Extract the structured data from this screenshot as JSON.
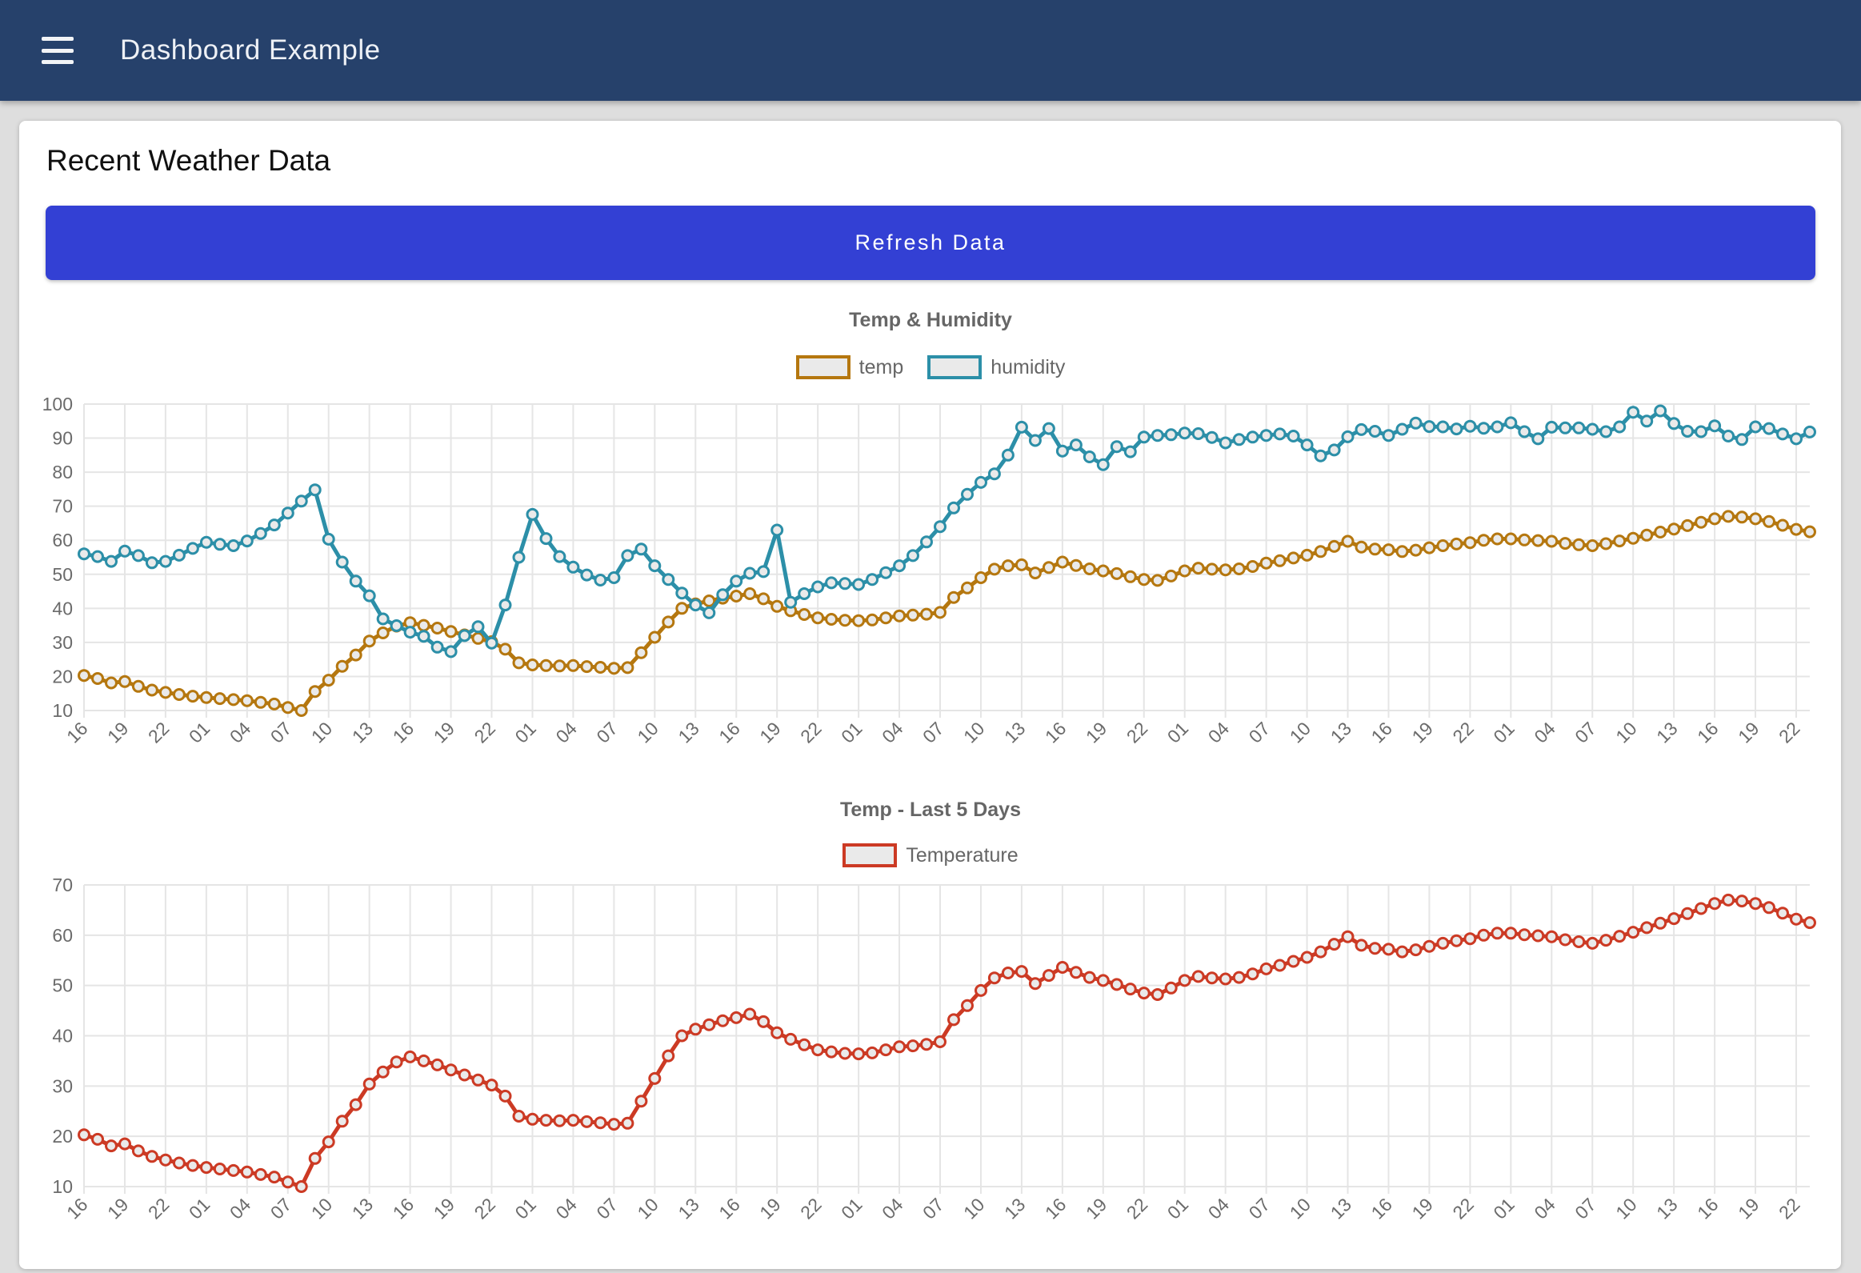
{
  "header": {
    "title": "Dashboard Example"
  },
  "page": {
    "heading": "Recent Weather Data",
    "refresh_button": "Refresh Data"
  },
  "colors": {
    "header_bg": "#26416b",
    "button_bg": "#3340d4",
    "page_bg": "#dedede",
    "card_bg": "#ffffff",
    "grid": "#e5e5e5",
    "tick_text": "#6b6b6b",
    "title_text": "#666666",
    "marker_fill": "#eaeaea",
    "temp_line": "#b5770f",
    "humidity_line": "#2c8fa8",
    "temperature_line": "#cc3a24"
  },
  "chart_data": [
    {
      "type": "line",
      "title": "Temp & Humidity",
      "legend_position": "top",
      "grid": true,
      "ylim": [
        10,
        100
      ],
      "yticks": [
        100,
        90,
        80,
        70,
        60,
        50,
        40,
        30,
        20,
        10
      ],
      "points_per_label": 3,
      "x_tick_labels": [
        "16",
        "19",
        "22",
        "01",
        "04",
        "07",
        "10",
        "13",
        "16",
        "19",
        "22",
        "01",
        "04",
        "07",
        "10",
        "13",
        "16",
        "19",
        "22",
        "01",
        "04",
        "07",
        "10",
        "13",
        "16",
        "19",
        "22",
        "01",
        "04",
        "07",
        "10",
        "13",
        "16",
        "19",
        "22",
        "01",
        "04",
        "07",
        "10",
        "13",
        "16",
        "19",
        "22"
      ],
      "series": [
        {
          "name": "temp",
          "color": "#b5770f",
          "values": [
            20.3,
            19.4,
            18.1,
            18.5,
            17.1,
            16.0,
            15.3,
            14.7,
            14.2,
            13.8,
            13.5,
            13.2,
            12.9,
            12.4,
            11.9,
            10.9,
            10.0,
            15.6,
            18.9,
            23.0,
            26.3,
            30.4,
            32.8,
            34.8,
            35.8,
            35.0,
            34.2,
            33.2,
            32.2,
            31.2,
            30.2,
            28.0,
            24.0,
            23.4,
            23.2,
            23.1,
            23.2,
            22.9,
            22.7,
            22.4,
            22.6,
            27.0,
            31.5,
            36.0,
            40.0,
            41.3,
            42.2,
            43.0,
            43.6,
            44.3,
            42.8,
            40.6,
            39.3,
            38.2,
            37.2,
            36.8,
            36.5,
            36.4,
            36.6,
            37.2,
            37.8,
            38.0,
            38.3,
            38.8,
            43.2,
            46.0,
            49.0,
            51.5,
            52.5,
            52.8,
            50.4,
            52.0,
            53.6,
            52.6,
            51.6,
            51.0,
            50.2,
            49.3,
            48.5,
            48.2,
            49.5,
            51.0,
            51.8,
            51.5,
            51.3,
            51.6,
            52.3,
            53.3,
            54.0,
            54.8,
            55.6,
            56.7,
            58.2,
            59.7,
            58.0,
            57.4,
            57.2,
            56.7,
            57.1,
            57.8,
            58.4,
            58.9,
            59.3,
            60.0,
            60.4,
            60.4,
            60.1,
            59.9,
            59.7,
            59.1,
            58.7,
            58.4,
            59.0,
            59.8,
            60.6,
            61.5,
            62.4,
            63.3,
            64.3,
            65.3,
            66.3,
            67.0,
            66.8,
            66.3,
            65.5,
            64.4,
            63.2,
            62.5
          ]
        },
        {
          "name": "humidity",
          "color": "#2c8fa8",
          "values": [
            56.0,
            55.2,
            53.8,
            56.8,
            55.5,
            53.4,
            53.8,
            55.6,
            57.6,
            59.4,
            58.8,
            58.4,
            59.8,
            62.0,
            64.5,
            68.0,
            71.5,
            74.8,
            60.3,
            53.6,
            48.0,
            43.7,
            36.9,
            34.9,
            33.0,
            31.8,
            28.6,
            27.3,
            32.0,
            34.6,
            29.8,
            41.0,
            55.0,
            67.6,
            60.5,
            55.2,
            52.1,
            49.8,
            48.3,
            49.0,
            55.5,
            57.4,
            52.5,
            48.5,
            44.5,
            41.0,
            38.7,
            44.0,
            48.0,
            50.3,
            50.8,
            63.0,
            41.8,
            44.3,
            46.3,
            47.5,
            47.3,
            47.0,
            48.5,
            50.5,
            52.5,
            55.5,
            59.5,
            64.0,
            69.5,
            73.5,
            77.0,
            79.5,
            85.0,
            93.2,
            89.3,
            92.8,
            86.2,
            88.0,
            84.5,
            82.2,
            87.5,
            86.0,
            90.3,
            90.8,
            91.0,
            91.5,
            91.3,
            90.2,
            88.6,
            89.6,
            90.3,
            90.8,
            91.2,
            90.6,
            88.0,
            84.8,
            86.5,
            90.4,
            92.5,
            92.0,
            90.8,
            92.6,
            94.4,
            93.4,
            93.3,
            92.7,
            93.5,
            92.9,
            93.3,
            94.5,
            91.9,
            89.8,
            93.2,
            93.0,
            93.0,
            92.6,
            91.9,
            93.3,
            97.6,
            95.0,
            98.0,
            94.3,
            92.0,
            91.9,
            93.6,
            90.6,
            89.6,
            93.3,
            92.8,
            91.2,
            89.8,
            91.8
          ]
        }
      ]
    },
    {
      "type": "line",
      "title": "Temp - Last 5 Days",
      "legend_position": "top",
      "grid": true,
      "ylim": [
        10,
        70
      ],
      "yticks": [
        70,
        60,
        50,
        40,
        30,
        20,
        10
      ],
      "points_per_label": 3,
      "x_tick_labels": [
        "16",
        "19",
        "22",
        "01",
        "04",
        "07",
        "10",
        "13",
        "16",
        "19",
        "22",
        "01",
        "04",
        "07",
        "10",
        "13",
        "16",
        "19",
        "22",
        "01",
        "04",
        "07",
        "10",
        "13",
        "16",
        "19",
        "22",
        "01",
        "04",
        "07",
        "10",
        "13",
        "16",
        "19",
        "22",
        "01",
        "04",
        "07",
        "10",
        "13",
        "16",
        "19",
        "22"
      ],
      "series": [
        {
          "name": "Temperature",
          "color": "#cc3a24",
          "values": [
            20.3,
            19.4,
            18.1,
            18.5,
            17.1,
            16.0,
            15.3,
            14.7,
            14.2,
            13.8,
            13.5,
            13.2,
            12.9,
            12.4,
            11.9,
            10.9,
            10.0,
            15.6,
            18.9,
            23.0,
            26.3,
            30.4,
            32.8,
            34.8,
            35.8,
            35.0,
            34.2,
            33.2,
            32.2,
            31.2,
            30.2,
            28.0,
            24.0,
            23.4,
            23.2,
            23.1,
            23.2,
            22.9,
            22.7,
            22.4,
            22.6,
            27.0,
            31.5,
            36.0,
            40.0,
            41.3,
            42.2,
            43.0,
            43.6,
            44.3,
            42.8,
            40.6,
            39.3,
            38.2,
            37.2,
            36.8,
            36.5,
            36.4,
            36.6,
            37.2,
            37.8,
            38.0,
            38.3,
            38.8,
            43.2,
            46.0,
            49.0,
            51.5,
            52.5,
            52.8,
            50.4,
            52.0,
            53.6,
            52.6,
            51.6,
            51.0,
            50.2,
            49.3,
            48.5,
            48.2,
            49.5,
            51.0,
            51.8,
            51.5,
            51.3,
            51.6,
            52.3,
            53.3,
            54.0,
            54.8,
            55.6,
            56.7,
            58.2,
            59.7,
            58.0,
            57.4,
            57.2,
            56.7,
            57.1,
            57.8,
            58.4,
            58.9,
            59.3,
            60.0,
            60.4,
            60.4,
            60.1,
            59.9,
            59.7,
            59.1,
            58.7,
            58.4,
            59.0,
            59.8,
            60.6,
            61.5,
            62.4,
            63.3,
            64.3,
            65.3,
            66.3,
            67.0,
            66.8,
            66.3,
            65.5,
            64.4,
            63.2,
            62.5
          ]
        }
      ]
    }
  ]
}
